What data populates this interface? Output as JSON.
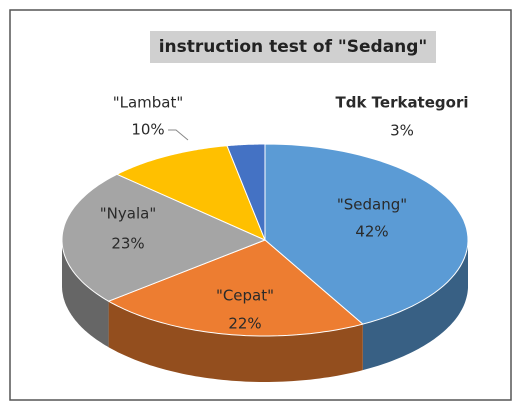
{
  "chart_data": {
    "type": "pie3d",
    "title": "instruction test of \"Sedang\"",
    "categories": [
      "\"Sedang\"",
      "\"Cepat\"",
      "\"Nyala\"",
      "\"Lambat\"",
      "Tdk Terkategori"
    ],
    "values": [
      42,
      22,
      23,
      10,
      3
    ],
    "value_labels": [
      "42%",
      "22%",
      "23%",
      "10%",
      "3%"
    ],
    "colors": [
      "#5b9bd5",
      "#ed7d31",
      "#a5a5a5",
      "#ffc000",
      "#4472c4"
    ]
  }
}
